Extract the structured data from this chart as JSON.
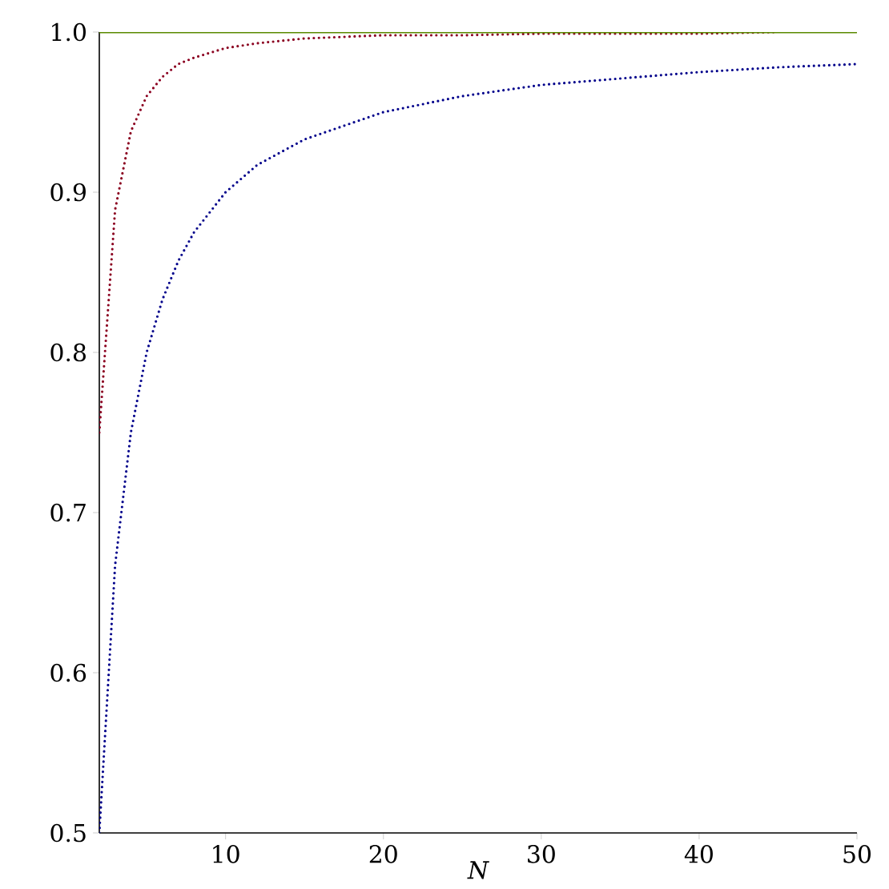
{
  "chart_data": {
    "type": "line",
    "xlabel": "N",
    "x": [
      2,
      3,
      4,
      5,
      6,
      7,
      8,
      10,
      12,
      15,
      20,
      25,
      30,
      35,
      40,
      45,
      50
    ],
    "series": [
      {
        "color": "#00008b",
        "line_style": "dotted",
        "values": [
          0.5,
          0.667,
          0.75,
          0.8,
          0.833,
          0.857,
          0.875,
          0.9,
          0.917,
          0.933,
          0.95,
          0.96,
          0.967,
          0.971,
          0.975,
          0.978,
          0.98
        ]
      },
      {
        "color": "#8b0020",
        "line_style": "dotted",
        "values": [
          0.75,
          0.889,
          0.938,
          0.96,
          0.972,
          0.98,
          0.984,
          0.99,
          0.993,
          0.996,
          0.998,
          0.998,
          0.999,
          0.999,
          0.999,
          1.0,
          null
        ]
      },
      {
        "color": "#5a8a00",
        "line_style": "solid",
        "values": [
          1,
          1,
          1,
          1,
          1,
          1,
          1,
          1,
          1,
          1,
          1,
          1,
          1,
          1,
          1,
          1,
          1
        ]
      }
    ],
    "xlim": [
      2,
      50
    ],
    "ylim": [
      0.5,
      1.0
    ],
    "xticks": [
      10,
      20,
      30,
      40,
      50
    ],
    "yticks": [
      0.5,
      0.6,
      0.7,
      0.8,
      0.9,
      {
        "value": 1,
        "label": "1.0"
      }
    ],
    "grid": false
  }
}
